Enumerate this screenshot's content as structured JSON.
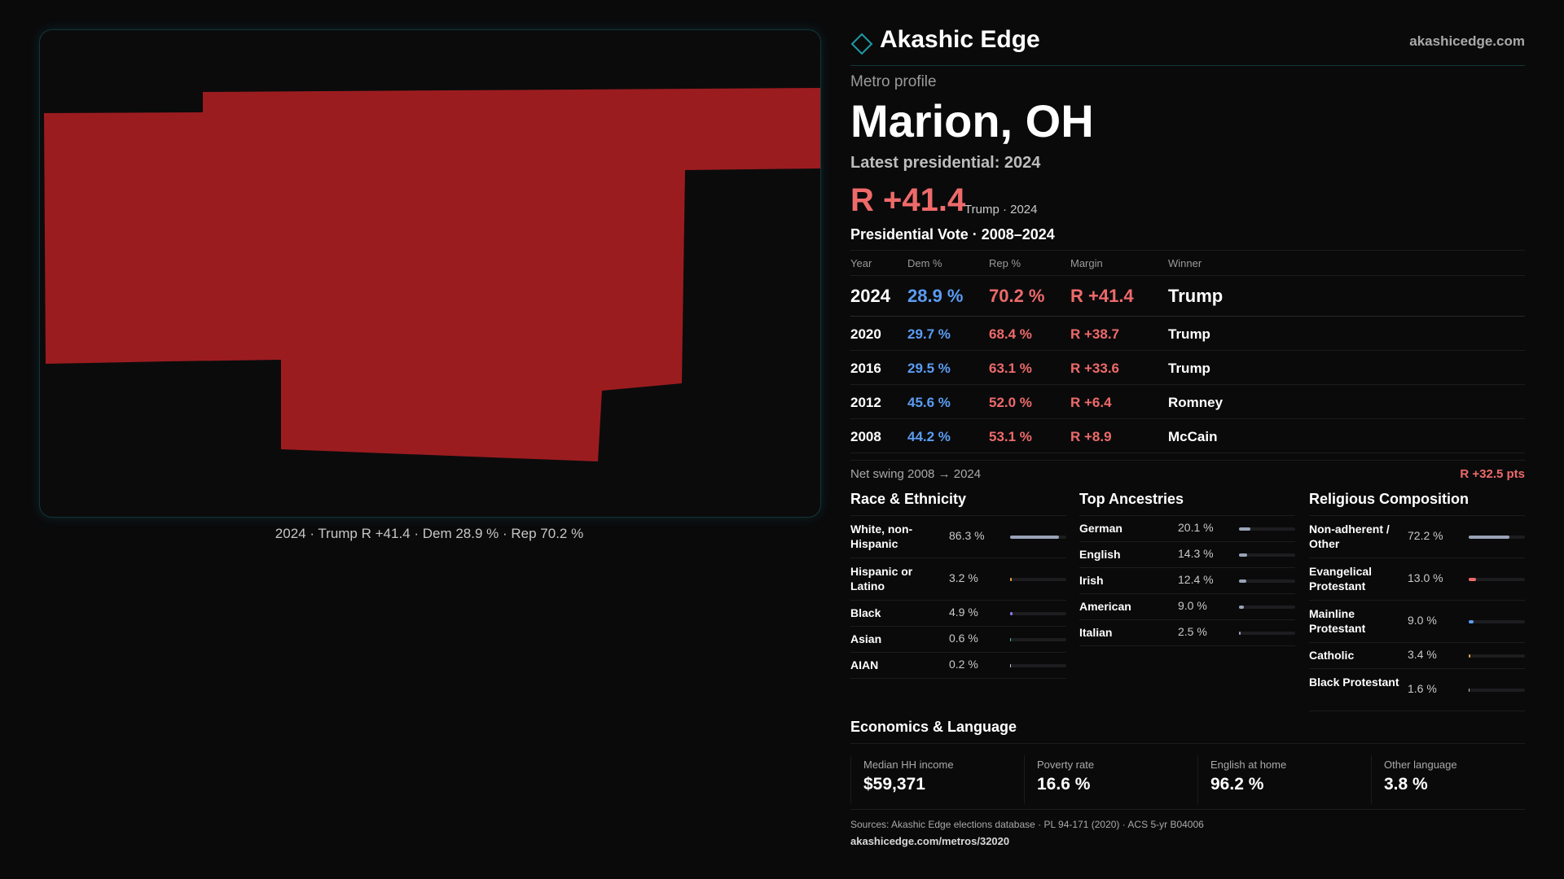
{
  "brand": {
    "name": "Akashic Edge",
    "url": "akashicedge.com",
    "accent": "#1f9aa6"
  },
  "profile": {
    "label": "Metro profile",
    "title": "Marion, OH",
    "latest_label": "Latest presidential: 2024",
    "headline_margin": "R +41.4",
    "headline_note": "Trump · 2024"
  },
  "map": {
    "fill_color": "#9b1c1f",
    "caption": "2024 · Trump R +41.4 · Dem 28.9 % · Rep 70.2 %"
  },
  "vote": {
    "title": "Presidential Vote · 2008–2024",
    "headers": {
      "year": "Year",
      "dem": "Dem %",
      "rep": "Rep %",
      "margin": "Margin",
      "winner": "Winner"
    },
    "rows": [
      {
        "year": "2024",
        "dem": "28.9 %",
        "rep": "70.2 %",
        "margin": "R +41.4",
        "winner": "Trump"
      },
      {
        "year": "2020",
        "dem": "29.7 %",
        "rep": "68.4 %",
        "margin": "R +38.7",
        "winner": "Trump"
      },
      {
        "year": "2016",
        "dem": "29.5 %",
        "rep": "63.1 %",
        "margin": "R +33.6",
        "winner": "Trump"
      },
      {
        "year": "2012",
        "dem": "45.6 %",
        "rep": "52.0 %",
        "margin": "R +6.4",
        "winner": "Romney"
      },
      {
        "year": "2008",
        "dem": "44.2 %",
        "rep": "53.1 %",
        "margin": "R +8.9",
        "winner": "McCain"
      }
    ],
    "colors": {
      "dem": "#5b9cf2",
      "rep": "#ee6a6a"
    }
  },
  "swing": {
    "label": "Net swing 2008 → 2024",
    "value": "R +32.5 pts"
  },
  "race": {
    "title": "Race & Ethnicity",
    "rows": [
      {
        "label": "White, non-Hispanic",
        "value": "86.3 %",
        "pct": 86.3,
        "color": "#9aa4b8"
      },
      {
        "label": "Hispanic or Latino",
        "value": "3.2 %",
        "pct": 3.2,
        "color": "#e8a33d"
      },
      {
        "label": "Black",
        "value": "4.9 %",
        "pct": 4.9,
        "color": "#8a7cf0"
      },
      {
        "label": "Asian",
        "value": "0.6 %",
        "pct": 0.6,
        "color": "#3fc3a8"
      },
      {
        "label": "AIAN",
        "value": "0.2 %",
        "pct": 0.2,
        "color": "#c9c9c9"
      }
    ]
  },
  "ancestry": {
    "title": "Top Ancestries",
    "rows": [
      {
        "label": "German",
        "value": "20.1 %",
        "pct": 20.1,
        "color": "#9aa4b8"
      },
      {
        "label": "English",
        "value": "14.3 %",
        "pct": 14.3,
        "color": "#9aa4b8"
      },
      {
        "label": "Irish",
        "value": "12.4 %",
        "pct": 12.4,
        "color": "#9aa4b8"
      },
      {
        "label": "American",
        "value": "9.0 %",
        "pct": 9.0,
        "color": "#9aa4b8"
      },
      {
        "label": "Italian",
        "value": "2.5 %",
        "pct": 2.5,
        "color": "#9aa4b8"
      }
    ]
  },
  "religion": {
    "title": "Religious Composition",
    "rows": [
      {
        "label": "Non-adherent / Other",
        "value": "72.2 %",
        "pct": 72.2,
        "color": "#9aa4b8"
      },
      {
        "label": "Evangelical Protestant",
        "value": "13.0 %",
        "pct": 13.0,
        "color": "#ee6a6a"
      },
      {
        "label": "Mainline Protestant",
        "value": "9.0 %",
        "pct": 9.0,
        "color": "#5b9cf2"
      },
      {
        "label": "Catholic",
        "value": "3.4 %",
        "pct": 3.4,
        "color": "#e8a33d"
      },
      {
        "label": "Black Protestant",
        "value": "1.6 %",
        "pct": 1.6,
        "color": "#c9c9c9"
      }
    ]
  },
  "economics": {
    "title": "Economics & Language",
    "items": [
      {
        "label": "Median HH income",
        "value": "$59,371"
      },
      {
        "label": "Poverty rate",
        "value": "16.6 %"
      },
      {
        "label": "English at home",
        "value": "96.2 %"
      },
      {
        "label": "Other language",
        "value": "3.8 %"
      }
    ]
  },
  "footer": {
    "sources": "Sources: Akashic Edge elections database · PL 94-171 (2020) · ACS 5-yr B04006",
    "page_url": "akashicedge.com/metros/32020"
  }
}
